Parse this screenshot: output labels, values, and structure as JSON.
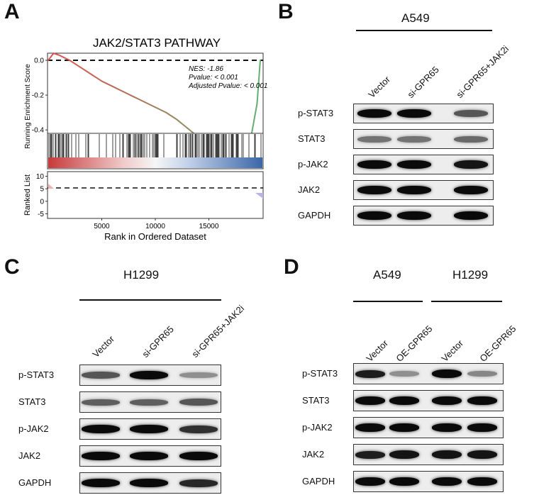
{
  "panels": {
    "A": {
      "letter": "A",
      "title": "JAK2/STAT3 PATHWAY",
      "ylabel_top": "Running Enrichment Score",
      "ylabel_bottom": "Ranked List",
      "xlabel": "Rank in Ordered Dataset",
      "stats": {
        "nes": "NES: -1.86",
        "pvalue": "Pvalue: < 0.001",
        "adj": "Adjusted Pvalue: < 0.001"
      },
      "colors": {
        "curve_start": "#e05050",
        "curve_end": "#60b070",
        "heat_red": "#c73a3a",
        "heat_blue": "#3a66a8"
      }
    },
    "B": {
      "letter": "B",
      "cell_line": "A549",
      "lanes": [
        "Vector",
        "si-GPR65",
        "si-GPR65+JAK2i"
      ],
      "rows": [
        "p-STAT3",
        "STAT3",
        "p-JAK2",
        "JAK2",
        "GAPDH"
      ]
    },
    "C": {
      "letter": "C",
      "cell_line": "H1299",
      "lanes": [
        "Vector",
        "si-GPR65",
        "si-GPR65+JAK2i"
      ],
      "rows": [
        "p-STAT3",
        "STAT3",
        "p-JAK2",
        "JAK2",
        "GAPDH"
      ]
    },
    "D": {
      "letter": "D",
      "cell_lines": [
        "A549",
        "H1299"
      ],
      "lanes": [
        "Vector",
        "OE-GPR65",
        "Vector",
        "OE-GPR65"
      ],
      "rows": [
        "p-STAT3",
        "STAT3",
        "p-JAK2",
        "JAK2",
        "GAPDH"
      ]
    }
  },
  "chart_data": {
    "type": "line",
    "title": "JAK2/STAT3 PATHWAY",
    "xlabel": "Rank in Ordered Dataset",
    "ylabel": "Running Enrichment Score",
    "xlim": [
      0,
      20000
    ],
    "ylim": [
      -0.6,
      0.05
    ],
    "x_ticks": [
      5000,
      10000,
      15000
    ],
    "y_ticks": [
      0.0,
      -0.2,
      -0.4
    ],
    "series": [
      {
        "x": [
          0,
          500,
          1000,
          2000,
          3000,
          4000,
          5000,
          6000,
          7000,
          8000,
          9000,
          10000,
          11000,
          12000,
          13000,
          14000,
          15000,
          16000,
          17000,
          18000,
          18500,
          19000,
          19500,
          19800
        ],
        "values": [
          0.0,
          0.04,
          0.03,
          0.0,
          -0.04,
          -0.08,
          -0.12,
          -0.15,
          -0.18,
          -0.21,
          -0.24,
          -0.27,
          -0.3,
          -0.34,
          -0.39,
          -0.44,
          -0.49,
          -0.52,
          -0.53,
          -0.53,
          -0.5,
          -0.42,
          -0.25,
          0.0
        ]
      }
    ],
    "hline": 0.0,
    "ranked_list": {
      "ylim": [
        -6,
        11
      ],
      "y_ticks": [
        10,
        5,
        0,
        -5
      ],
      "hline": 5
    }
  }
}
